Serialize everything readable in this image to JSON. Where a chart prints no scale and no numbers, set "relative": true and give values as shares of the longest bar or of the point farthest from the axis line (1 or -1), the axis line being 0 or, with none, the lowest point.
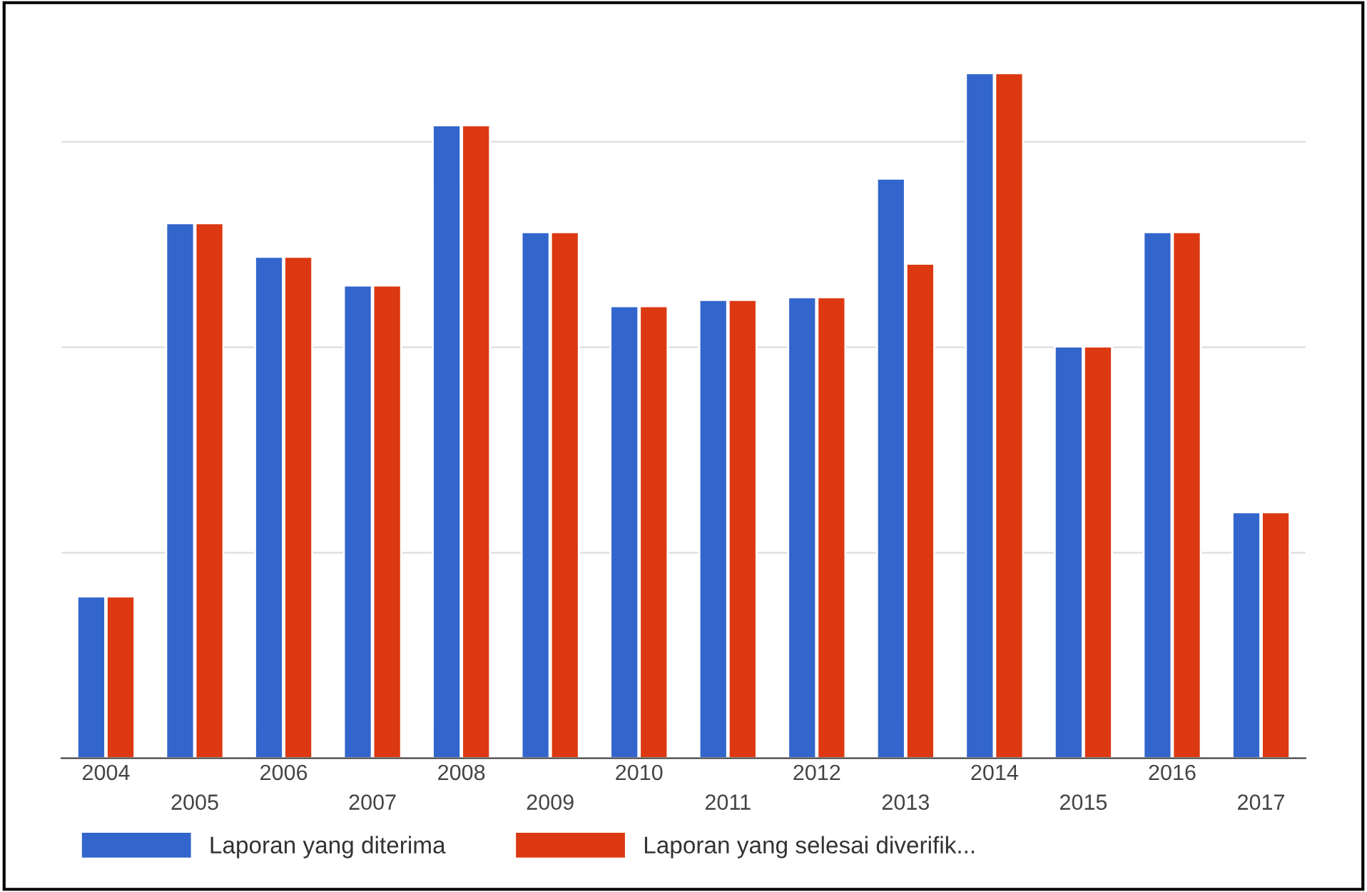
{
  "chart_data": {
    "type": "bar",
    "relative": true,
    "categories": [
      "2004",
      "2005",
      "2006",
      "2007",
      "2008",
      "2009",
      "2010",
      "2011",
      "2012",
      "2013",
      "2014",
      "2015",
      "2016",
      "2017"
    ],
    "series": [
      {
        "name": "Laporan yang diterima",
        "color": "#3366cc",
        "values": [
          0.236,
          0.781,
          0.732,
          0.69,
          0.924,
          0.768,
          0.66,
          0.669,
          0.673,
          0.846,
          1,
          0.601,
          0.768,
          0.359
        ]
      },
      {
        "name": "Laporan yang selesai diverifik...",
        "color": "#dc3912",
        "values": [
          0.236,
          0.781,
          0.732,
          0.69,
          0.924,
          0.768,
          0.66,
          0.669,
          0.673,
          0.722,
          1,
          0.601,
          0.768,
          0.359
        ]
      }
    ],
    "grid": "y",
    "legend": "bottom left"
  }
}
